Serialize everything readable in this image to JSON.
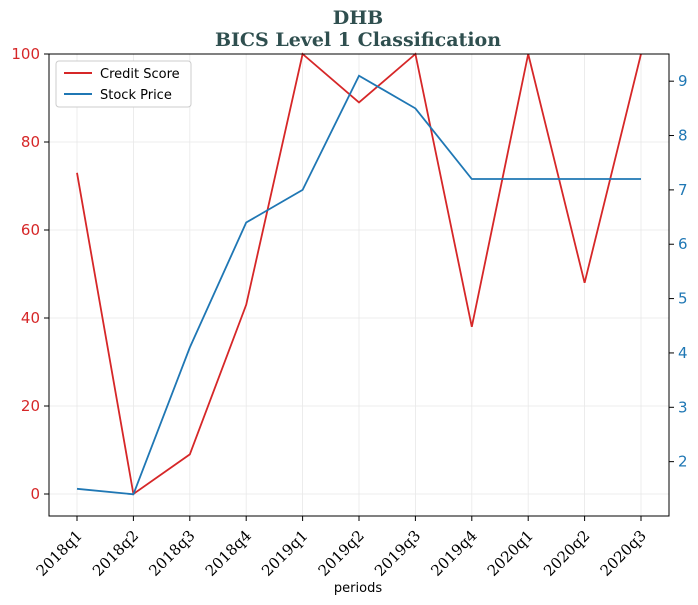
{
  "chart_data": {
    "type": "line",
    "title": "DHB",
    "subtitle": "BICS Level 1 Classification",
    "xlabel": "periods",
    "ylabel": "",
    "y2label": "",
    "categories": [
      "2018q1",
      "2018q2",
      "2018q3",
      "2018q4",
      "2019q1",
      "2019q2",
      "2019q3",
      "2019q4",
      "2020q1",
      "2020q2",
      "2020q3"
    ],
    "series": [
      {
        "name": "Credit Score",
        "axis": "left",
        "color": "#d62728",
        "values": [
          73,
          0,
          9,
          43,
          100,
          89,
          100,
          38,
          100,
          48,
          100
        ]
      },
      {
        "name": "Stock Price",
        "axis": "right",
        "color": "#1f77b4",
        "values": [
          1.5,
          1.4,
          4.1,
          6.4,
          7.0,
          9.1,
          8.5,
          7.2,
          7.2,
          7.2,
          7.2
        ]
      }
    ],
    "ylim": [
      -5,
      100
    ],
    "y2lim": [
      1.0,
      9.5
    ],
    "yticks": [
      "0",
      "20",
      "40",
      "60",
      "80",
      "100"
    ],
    "y2ticks": [
      "2",
      "3",
      "4",
      "5",
      "6",
      "7",
      "8",
      "9"
    ],
    "left_axis_color": "#d62728",
    "right_axis_color": "#1f77b4",
    "title_color": "#2f4f4f",
    "grid": true,
    "legend_position": "top-left"
  }
}
